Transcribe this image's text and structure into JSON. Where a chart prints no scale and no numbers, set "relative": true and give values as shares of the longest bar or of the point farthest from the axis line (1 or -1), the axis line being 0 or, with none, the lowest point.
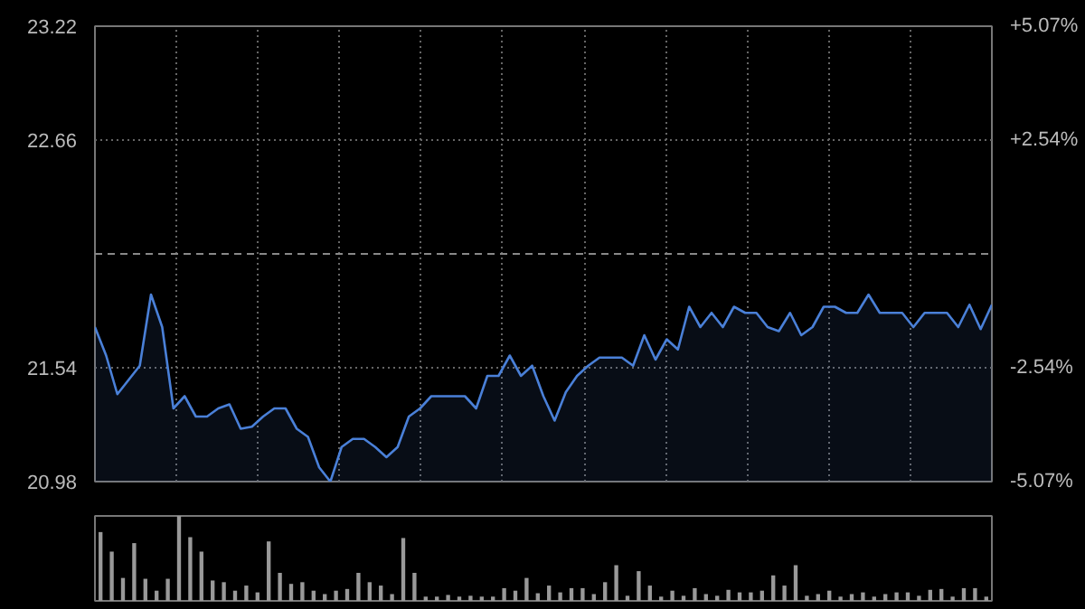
{
  "chart_data": [
    {
      "type": "area",
      "categories": [
        null,
        null,
        null,
        null,
        null,
        null,
        null,
        null,
        null,
        null,
        null,
        null,
        null,
        null,
        null,
        null,
        null,
        null,
        null,
        null,
        null,
        null,
        null,
        null,
        null,
        null,
        null,
        null,
        null,
        null,
        null,
        null,
        null,
        null,
        null,
        null,
        null,
        null,
        null,
        null,
        null,
        null,
        null,
        null,
        null,
        null,
        null,
        null,
        null,
        null,
        null,
        null,
        null,
        null,
        null,
        null,
        null,
        null,
        null,
        null,
        null,
        null,
        null,
        null,
        null,
        null,
        null,
        null,
        null,
        null,
        null,
        null,
        null,
        null,
        null,
        null,
        null,
        null,
        null,
        null,
        null
      ],
      "series": [
        {
          "color": "#4a80d8",
          "values": [
            21.74,
            21.6,
            21.41,
            21.48,
            21.55,
            21.9,
            21.74,
            21.34,
            21.4,
            21.3,
            21.3,
            21.34,
            21.36,
            21.24,
            21.25,
            21.3,
            21.34,
            21.34,
            21.24,
            21.2,
            21.05,
            20.98,
            21.15,
            21.19,
            21.19,
            21.15,
            21.1,
            21.15,
            21.3,
            21.34,
            21.4,
            21.4,
            21.4,
            21.4,
            21.34,
            21.5,
            21.5,
            21.6,
            21.5,
            21.55,
            21.4,
            21.28,
            21.42,
            21.5,
            21.55,
            21.59,
            21.59,
            21.59,
            21.55,
            21.7,
            21.58,
            21.68,
            21.63,
            21.84,
            21.74,
            21.81,
            21.74,
            21.84,
            21.81,
            21.81,
            21.74,
            21.72,
            21.81,
            21.7,
            21.74,
            21.84,
            21.84,
            21.81,
            21.81,
            21.9,
            21.81,
            21.81,
            21.81,
            21.74,
            21.81,
            21.81,
            21.81,
            21.74,
            21.85,
            21.73,
            21.85
          ]
        }
      ],
      "ylim": [
        20.98,
        23.22
      ],
      "yticks": [
        20.98,
        21.54,
        22.66,
        23.22
      ],
      "y2lim": [
        -5.07,
        5.07
      ],
      "y2ticks": [
        {
          "value": -5.07,
          "label": "-5.07%"
        },
        {
          "value": -2.54,
          "label": "-2.54%"
        },
        {
          "value": 2.54,
          "label": "+2.54%"
        },
        {
          "value": 5.07,
          "label": "+5.07%"
        }
      ],
      "ref_lines": [
        {
          "axis": "y",
          "value": 22.1,
          "color": "#888888",
          "line_style": "dashed"
        }
      ],
      "grid": true,
      "tick_labels": "y"
    },
    {
      "type": "bar",
      "relative": true,
      "color": "#999999",
      "categories": [
        null,
        null,
        null,
        null,
        null,
        null,
        null,
        null,
        null,
        null,
        null,
        null,
        null,
        null,
        null,
        null,
        null,
        null,
        null,
        null,
        null,
        null,
        null,
        null,
        null,
        null,
        null,
        null,
        null,
        null,
        null,
        null,
        null,
        null,
        null,
        null,
        null,
        null,
        null,
        null,
        null,
        null,
        null,
        null,
        null,
        null,
        null,
        null,
        null,
        null,
        null,
        null,
        null,
        null,
        null,
        null,
        null,
        null,
        null,
        null,
        null,
        null,
        null,
        null,
        null,
        null,
        null,
        null,
        null,
        null,
        null,
        null,
        null,
        null,
        null,
        null,
        null,
        null,
        null,
        null
      ],
      "values": [
        0.81,
        0.58,
        0.27,
        0.68,
        0.26,
        0.12,
        0.26,
        1.0,
        0.75,
        0.58,
        0.24,
        0.22,
        0.12,
        0.18,
        0.1,
        0.7,
        0.33,
        0.2,
        0.22,
        0.12,
        0.08,
        0.12,
        0.14,
        0.33,
        0.22,
        0.18,
        0.08,
        0.74,
        0.33,
        0.05,
        0.05,
        0.07,
        0.05,
        0.06,
        0.05,
        0.05,
        0.15,
        0.12,
        0.27,
        0.09,
        0.18,
        0.1,
        0.15,
        0.15,
        0.08,
        0.22,
        0.42,
        0.06,
        0.35,
        0.18,
        0.05,
        0.12,
        0.06,
        0.15,
        0.08,
        0.06,
        0.13,
        0.1,
        0.1,
        0.12,
        0.3,
        0.18,
        0.42,
        0.06,
        0.08,
        0.12,
        0.05,
        0.08,
        0.1,
        0.05,
        0.08,
        0.1,
        0.1,
        0.06,
        0.13,
        0.14,
        0.05,
        0.15,
        0.15,
        0.05
      ]
    }
  ]
}
